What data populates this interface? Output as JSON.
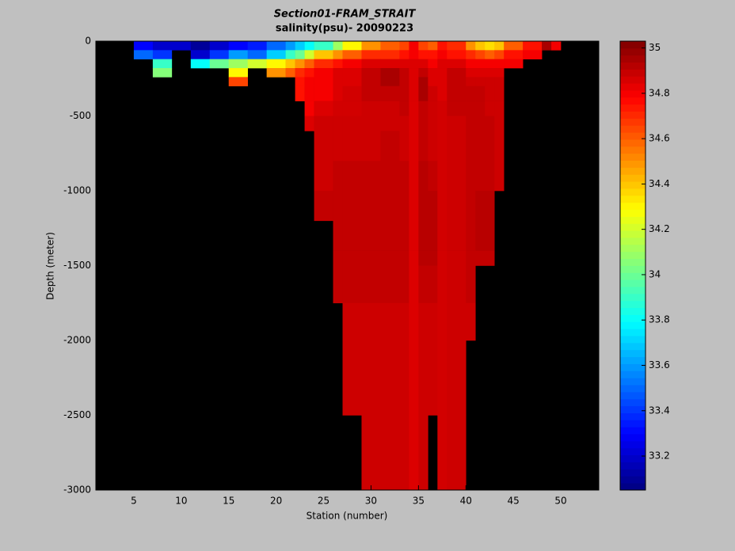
{
  "chart_data": {
    "type": "heatmap",
    "title": "Section01-FRAM_STRAIT",
    "subtitle": "salinity(psu)- 20090223",
    "x_label": "Station (number)",
    "y_label": "Depth (meter)",
    "colormap": "jet",
    "missing_color": "#000000",
    "xlim": [
      1,
      54
    ],
    "xticks": [
      5,
      10,
      15,
      20,
      25,
      30,
      35,
      40,
      45,
      50
    ],
    "ylim": [
      -3000,
      0
    ],
    "yticks": [
      -3000,
      -2500,
      -2000,
      -1500,
      -1000,
      -500,
      0
    ],
    "clim": [
      33.05,
      35.03
    ],
    "colorbar_ticks": [
      33.2,
      33.4,
      33.6,
      33.8,
      34,
      34.2,
      34.4,
      34.6,
      34.8,
      35
    ],
    "x_edges": [
      1,
      5,
      7,
      9,
      11,
      13,
      15,
      17,
      19,
      21,
      22,
      23,
      24,
      26,
      27,
      29,
      31,
      33,
      34,
      35,
      36,
      37,
      38,
      40,
      41,
      42,
      43,
      44,
      46,
      48,
      49,
      50,
      51,
      54
    ],
    "depth_edges": [
      0,
      -60,
      -120,
      -180,
      -240,
      -300,
      -400,
      -500,
      -600,
      -800,
      -1000,
      -1200,
      -1400,
      -1500,
      -1750,
      -2000,
      -2500,
      -3000
    ],
    "values": [
      [
        null,
        33.3,
        33.2,
        33.2,
        33.1,
        33.2,
        33.3,
        33.35,
        33.5,
        33.6,
        33.7,
        33.8,
        33.9,
        34.1,
        34.3,
        34.5,
        34.6,
        34.65,
        34.8,
        34.65,
        34.6,
        34.75,
        34.7,
        34.5,
        34.4,
        34.35,
        34.4,
        34.6,
        34.75,
        34.95,
        34.8,
        null,
        null
      ],
      [
        null,
        33.5,
        33.4,
        null,
        33.2,
        33.4,
        33.6,
        33.5,
        33.7,
        33.9,
        34.0,
        34.2,
        34.4,
        34.5,
        34.6,
        34.7,
        34.7,
        34.75,
        34.8,
        34.75,
        34.75,
        34.8,
        34.75,
        34.7,
        34.65,
        34.6,
        34.65,
        34.75,
        34.8,
        null,
        null,
        null,
        null
      ],
      [
        null,
        null,
        33.9,
        null,
        33.8,
        34.0,
        34.1,
        34.2,
        34.3,
        34.4,
        34.5,
        34.6,
        34.7,
        34.75,
        34.8,
        34.85,
        34.85,
        34.85,
        34.85,
        34.85,
        34.8,
        34.85,
        34.85,
        34.8,
        34.8,
        34.8,
        34.8,
        34.8,
        null,
        null,
        null,
        null,
        null
      ],
      [
        null,
        null,
        34.05,
        null,
        null,
        null,
        34.3,
        null,
        34.5,
        34.6,
        34.7,
        34.75,
        34.8,
        34.85,
        34.85,
        34.9,
        34.95,
        34.9,
        34.85,
        34.9,
        34.85,
        34.85,
        34.9,
        34.85,
        34.85,
        34.85,
        34.85,
        null,
        null,
        null,
        null,
        null,
        null
      ],
      [
        null,
        null,
        null,
        null,
        null,
        null,
        34.65,
        null,
        null,
        null,
        34.75,
        34.8,
        34.8,
        34.85,
        34.85,
        34.9,
        34.95,
        34.9,
        34.85,
        34.95,
        34.85,
        34.85,
        34.9,
        34.88,
        34.88,
        34.88,
        34.88,
        null,
        null,
        null,
        null,
        null,
        null
      ],
      [
        null,
        null,
        null,
        null,
        null,
        null,
        null,
        null,
        null,
        null,
        34.75,
        34.8,
        34.8,
        34.85,
        34.87,
        34.9,
        34.9,
        34.9,
        34.85,
        34.95,
        34.88,
        34.85,
        34.9,
        34.9,
        34.9,
        34.88,
        34.88,
        null,
        null,
        null,
        null,
        null,
        null
      ],
      [
        null,
        null,
        null,
        null,
        null,
        null,
        null,
        null,
        null,
        null,
        null,
        34.8,
        34.85,
        34.87,
        34.87,
        34.88,
        34.88,
        34.9,
        34.85,
        34.9,
        34.88,
        34.87,
        34.9,
        34.9,
        34.9,
        34.88,
        34.88,
        null,
        null,
        null,
        null,
        null,
        null
      ],
      [
        null,
        null,
        null,
        null,
        null,
        null,
        null,
        null,
        null,
        null,
        null,
        34.85,
        34.88,
        34.88,
        34.88,
        34.88,
        34.88,
        34.88,
        34.85,
        34.9,
        34.88,
        34.87,
        34.88,
        34.9,
        34.9,
        34.9,
        34.88,
        null,
        null,
        null,
        null,
        null,
        null
      ],
      [
        null,
        null,
        null,
        null,
        null,
        null,
        null,
        null,
        null,
        null,
        null,
        null,
        34.88,
        34.88,
        34.88,
        34.88,
        34.9,
        34.88,
        34.85,
        34.9,
        34.88,
        34.87,
        34.88,
        34.9,
        34.9,
        34.9,
        34.88,
        null,
        null,
        null,
        null,
        null,
        null
      ],
      [
        null,
        null,
        null,
        null,
        null,
        null,
        null,
        null,
        null,
        null,
        null,
        null,
        34.88,
        34.9,
        34.9,
        34.9,
        34.9,
        34.9,
        34.85,
        34.92,
        34.9,
        34.87,
        34.88,
        34.9,
        34.9,
        34.9,
        34.88,
        null,
        null,
        null,
        null,
        null,
        null
      ],
      [
        null,
        null,
        null,
        null,
        null,
        null,
        null,
        null,
        null,
        null,
        null,
        null,
        34.9,
        34.9,
        34.9,
        34.9,
        34.9,
        34.9,
        34.85,
        34.92,
        34.92,
        34.87,
        34.88,
        34.9,
        34.92,
        34.92,
        null,
        null,
        null,
        null,
        null,
        null,
        null
      ],
      [
        null,
        null,
        null,
        null,
        null,
        null,
        null,
        null,
        null,
        null,
        null,
        null,
        null,
        34.9,
        34.9,
        34.9,
        34.9,
        34.9,
        34.85,
        34.92,
        34.92,
        34.87,
        34.88,
        34.9,
        34.92,
        34.92,
        null,
        null,
        null,
        null,
        null,
        null,
        null
      ],
      [
        null,
        null,
        null,
        null,
        null,
        null,
        null,
        null,
        null,
        null,
        null,
        null,
        null,
        34.9,
        34.9,
        34.9,
        34.9,
        34.9,
        34.85,
        34.92,
        34.92,
        34.87,
        34.88,
        34.9,
        34.9,
        34.9,
        null,
        null,
        null,
        null,
        null,
        null,
        null
      ],
      [
        null,
        null,
        null,
        null,
        null,
        null,
        null,
        null,
        null,
        null,
        null,
        null,
        null,
        34.9,
        34.9,
        34.9,
        34.9,
        34.9,
        34.85,
        34.9,
        34.9,
        34.87,
        34.88,
        34.9,
        null,
        null,
        null,
        null,
        null,
        null,
        null,
        null,
        null
      ],
      [
        null,
        null,
        null,
        null,
        null,
        null,
        null,
        null,
        null,
        null,
        null,
        null,
        null,
        null,
        34.88,
        34.88,
        34.88,
        34.88,
        34.85,
        34.88,
        34.88,
        34.87,
        34.88,
        34.88,
        null,
        null,
        null,
        null,
        null,
        null,
        null,
        null,
        null
      ],
      [
        null,
        null,
        null,
        null,
        null,
        null,
        null,
        null,
        null,
        null,
        null,
        null,
        null,
        null,
        34.88,
        34.88,
        34.88,
        34.88,
        34.85,
        34.88,
        34.88,
        34.87,
        34.88,
        null,
        null,
        null,
        null,
        null,
        null,
        null,
        null,
        null,
        null
      ],
      [
        null,
        null,
        null,
        null,
        null,
        null,
        null,
        null,
        null,
        null,
        null,
        null,
        null,
        null,
        null,
        34.88,
        34.88,
        34.88,
        34.85,
        34.88,
        null,
        34.87,
        34.88,
        null,
        null,
        null,
        null,
        null,
        null,
        null,
        null,
        null,
        null
      ]
    ]
  }
}
